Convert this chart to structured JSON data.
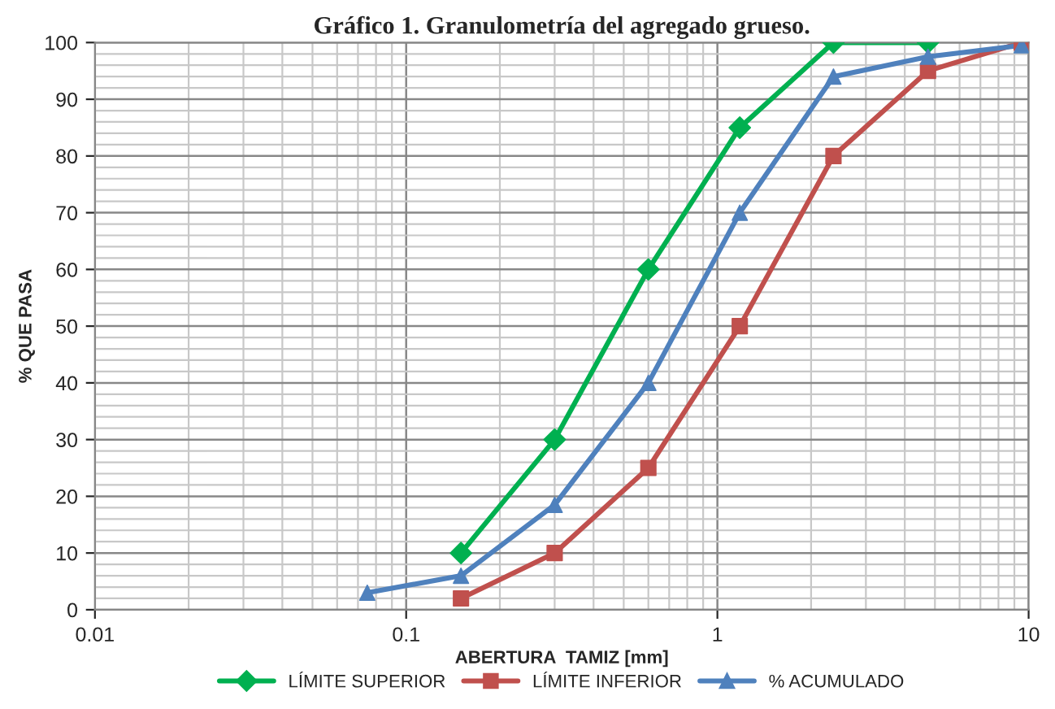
{
  "chart_data": {
    "type": "line",
    "title": "Gráfico 1. Granulometría del agregado grueso.",
    "xlabel": "ABERTURA  TAMIZ [mm]",
    "ylabel": "% QUE PASA",
    "log": "x",
    "xlim": [
      0.01,
      10
    ],
    "xticks": [
      0.01,
      0.1,
      1,
      10
    ],
    "ylim": [
      0,
      100
    ],
    "yticks": [
      0,
      10,
      20,
      30,
      40,
      50,
      60,
      70,
      80,
      90,
      100
    ],
    "grid": true,
    "legend": "bottom",
    "series": [
      {
        "name": "LÍMITE SUPERIOR",
        "color": "#00b050",
        "marker": "diamond",
        "x": [
          0.15,
          0.3,
          0.6,
          1.18,
          2.36,
          4.75
        ],
        "values": [
          10,
          30,
          60,
          85,
          100,
          100
        ]
      },
      {
        "name": "LÍMITE INFERIOR",
        "color": "#c0504d",
        "marker": "square",
        "x": [
          0.15,
          0.3,
          0.6,
          1.18,
          2.36,
          4.75,
          9.5
        ],
        "values": [
          2,
          10,
          25,
          50,
          80,
          95,
          100
        ]
      },
      {
        "name": "% ACUMULADO",
        "color": "#4f81bd",
        "marker": "triangle",
        "x": [
          0.075,
          0.15,
          0.3,
          0.6,
          1.18,
          2.36,
          4.75,
          9.5
        ],
        "values": [
          3,
          6,
          18.5,
          40,
          70,
          94,
          97.5,
          99.5
        ]
      }
    ]
  }
}
